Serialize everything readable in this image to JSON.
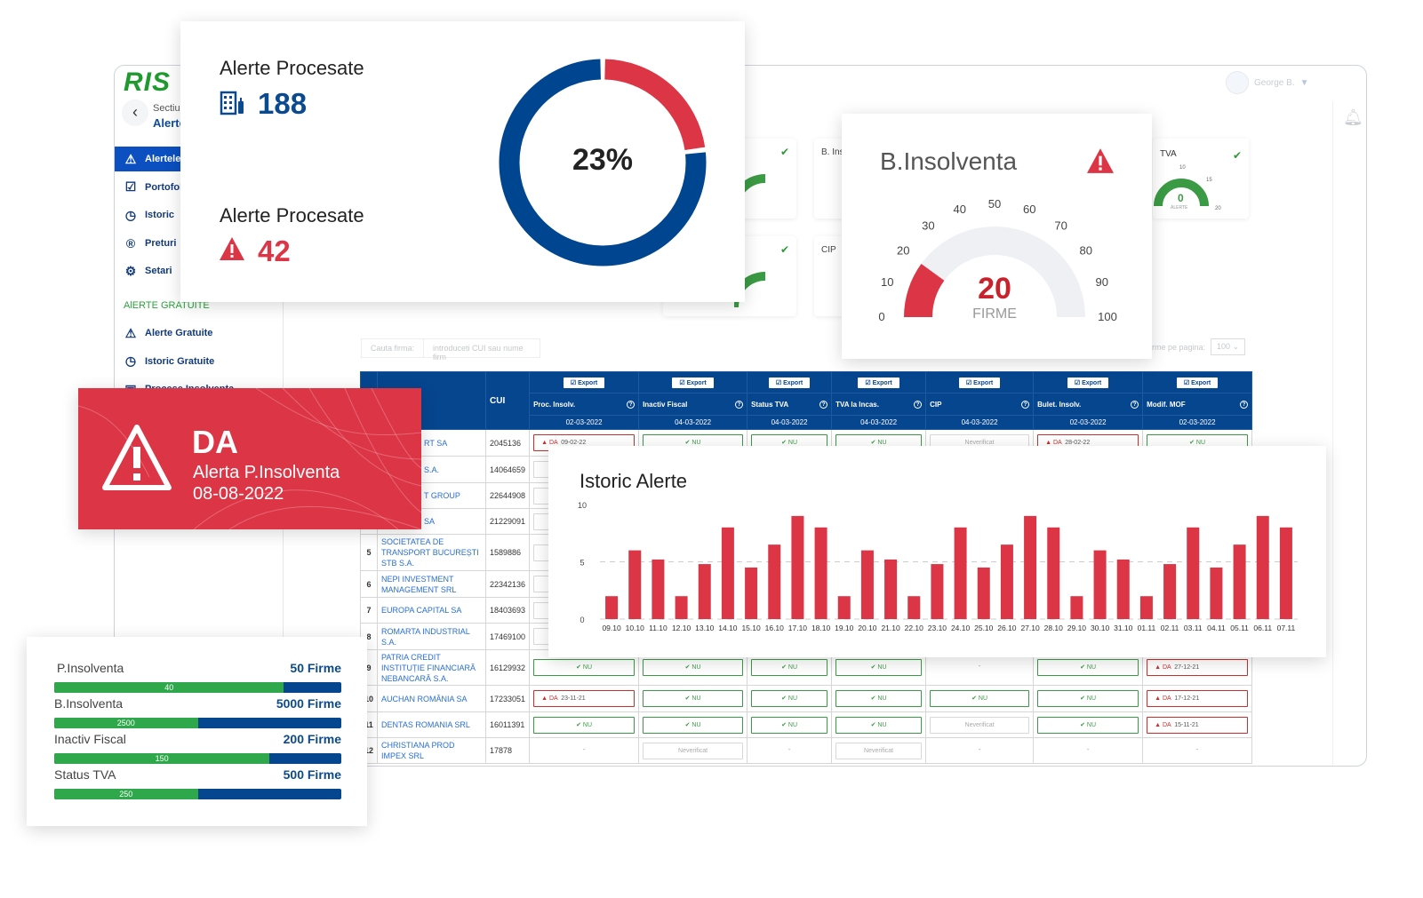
{
  "app": {
    "logo": "RIS",
    "back_label": "Sectiune",
    "back_sub": "Alerte",
    "user": "George B."
  },
  "sidebar": {
    "items": [
      {
        "label": "Alertele",
        "icon": "⚠"
      },
      {
        "label": "Portofoliu",
        "icon": "☑"
      },
      {
        "label": "Istoric",
        "icon": "◷"
      },
      {
        "label": "Preturi",
        "icon": "®"
      },
      {
        "label": "Setari",
        "icon": "⚙"
      }
    ],
    "section": "AlERTE GRATUITE",
    "free_items": [
      {
        "label": "Alerte Gratuite",
        "icon": "⚠"
      },
      {
        "label": "Istoric Gratuite",
        "icon": "◷"
      },
      {
        "label": "Procese Insolventa",
        "icon": "▣"
      }
    ]
  },
  "bg_cards": {
    "b_ins": "B. Ins",
    "cip": "CIP",
    "tva": "TVA",
    "tva_value": "0",
    "tva_unit": "ALERTE",
    "t10": "10",
    "t15": "15",
    "t20": "20"
  },
  "search": {
    "label": "Cauta firma:",
    "placeholder": "introduceti CUI sau nume firm",
    "per_page_label": "irme pe pagina:",
    "per_page": "100"
  },
  "table": {
    "cui_header": "CUI",
    "export_label": "Export",
    "columns": [
      {
        "name": "Proc. Insolv.",
        "date": "02-03-2022"
      },
      {
        "name": "Inactiv Fiscal",
        "date": "04-03-2022"
      },
      {
        "name": "Status TVA",
        "date": "04-03-2022"
      },
      {
        "name": "TVA la Incas.",
        "date": "04-03-2022"
      },
      {
        "name": "CIP",
        "date": "04-03-2022"
      },
      {
        "name": "Bulet. Insolv.",
        "date": "02-03-2022"
      },
      {
        "name": "Modif. MOF",
        "date": "02-03-2022"
      }
    ],
    "rows": [
      {
        "n": "",
        "name": "RT SA",
        "cui": "2045136",
        "cells": [
          {
            "s": "DA",
            "d": "09-02-22"
          },
          {
            "s": "NU"
          },
          {
            "s": "NU"
          },
          {
            "s": "NU"
          },
          {
            "s": "Neverificat"
          },
          {
            "s": "DA",
            "d": "28-02-22"
          },
          {
            "s": "NU"
          }
        ]
      },
      {
        "n": "",
        "name": "S.A.",
        "cui": "14064659",
        "cells": [
          {
            "s": ""
          },
          {
            "s": ""
          },
          {
            "s": ""
          },
          {
            "s": ""
          },
          {
            "s": ""
          },
          {
            "s": ""
          },
          {
            "s": ""
          }
        ]
      },
      {
        "n": "",
        "name": "T GROUP",
        "cui": "22644908",
        "cells": [
          {
            "s": ""
          },
          {
            "s": ""
          },
          {
            "s": ""
          },
          {
            "s": ""
          },
          {
            "s": ""
          },
          {
            "s": ""
          },
          {
            "s": ""
          }
        ]
      },
      {
        "n": "",
        "name": "SA",
        "cui": "21229091",
        "cells": [
          {
            "s": ""
          },
          {
            "s": ""
          },
          {
            "s": ""
          },
          {
            "s": ""
          },
          {
            "s": ""
          },
          {
            "s": ""
          },
          {
            "s": ""
          }
        ]
      },
      {
        "n": "5",
        "name": "SOCIETATEA DE TRANSPORT BUCUREȘTI STB S.A.",
        "cui": "1589886",
        "cells": [
          {
            "s": ""
          },
          {
            "s": ""
          },
          {
            "s": ""
          },
          {
            "s": ""
          },
          {
            "s": ""
          },
          {
            "s": ""
          },
          {
            "s": ""
          }
        ]
      },
      {
        "n": "6",
        "name": "NEPI INVESTMENT MANAGEMENT SRL",
        "cui": "22342136",
        "cells": [
          {
            "s": ""
          },
          {
            "s": ""
          },
          {
            "s": ""
          },
          {
            "s": ""
          },
          {
            "s": ""
          },
          {
            "s": ""
          },
          {
            "s": ""
          }
        ]
      },
      {
        "n": "7",
        "name": "EUROPA CAPITAL SA",
        "cui": "18403693",
        "cells": [
          {
            "s": ""
          },
          {
            "s": ""
          },
          {
            "s": ""
          },
          {
            "s": ""
          },
          {
            "s": ""
          },
          {
            "s": ""
          },
          {
            "s": ""
          }
        ]
      },
      {
        "n": "8",
        "name": "ROMARTA INDUSTRIAL S.A.",
        "cui": "17469100",
        "cells": [
          {
            "s": ""
          },
          {
            "s": ""
          },
          {
            "s": ""
          },
          {
            "s": ""
          },
          {
            "s": ""
          },
          {
            "s": ""
          },
          {
            "s": ""
          }
        ]
      },
      {
        "n": "9",
        "name": "PATRIA CREDIT INSTITUȚIE FINANCIARĂ NEBANCARĂ S.A.",
        "cui": "16129932",
        "cells": [
          {
            "s": "NU"
          },
          {
            "s": "NU"
          },
          {
            "s": "NU"
          },
          {
            "s": "NU"
          },
          {
            "s": "-"
          },
          {
            "s": "NU"
          },
          {
            "s": "DA",
            "d": "27-12-21"
          }
        ]
      },
      {
        "n": "10",
        "name": "AUCHAN ROMÂNIA SA",
        "cui": "17233051",
        "cells": [
          {
            "s": "DA",
            "d": "23-11-21"
          },
          {
            "s": "NU"
          },
          {
            "s": "NU"
          },
          {
            "s": "NU"
          },
          {
            "s": "NU"
          },
          {
            "s": "NU"
          },
          {
            "s": "DA",
            "d": "17-12-21"
          }
        ]
      },
      {
        "n": "11",
        "name": "DENTAS ROMANIA SRL",
        "cui": "16011391",
        "cells": [
          {
            "s": "NU"
          },
          {
            "s": "NU"
          },
          {
            "s": "NU"
          },
          {
            "s": "NU"
          },
          {
            "s": "Neverificat"
          },
          {
            "s": "NU"
          },
          {
            "s": "DA",
            "d": "15-11-21"
          }
        ]
      },
      {
        "n": "12",
        "name": "CHRISTIANA PROD IMPEX SRL",
        "cui": "17878",
        "cells": [
          {
            "s": "-"
          },
          {
            "s": "Neverificat"
          },
          {
            "s": "-"
          },
          {
            "s": "Neverificat"
          },
          {
            "s": "-"
          },
          {
            "s": "-"
          },
          {
            "s": "-"
          }
        ]
      }
    ]
  },
  "summary": {
    "title1": "Alerte Procesate",
    "value1": "188",
    "title2": "Alerte Procesate",
    "value2": "42",
    "percent": 23,
    "percent_label": "23%",
    "blue": "#00458f",
    "red": "#dc3545"
  },
  "binsolventa": {
    "title": "B.Insolventa",
    "value": 20,
    "value_label": "20",
    "unit": "FIRME",
    "max": 100,
    "ticks": [
      "0",
      "10",
      "20",
      "30",
      "40",
      "50",
      "60",
      "70",
      "80",
      "90",
      "100"
    ]
  },
  "alert_banner": {
    "status": "DA",
    "label": "Alerta P.Insolventa",
    "date": "08-08-2022"
  },
  "progress": {
    "items": [
      {
        "label": "P.Insolventa",
        "total_label": "50 Firme",
        "total": 50,
        "value": 40,
        "value_label": "40"
      },
      {
        "label": "B.Insolventa",
        "total_label": "5000 Firme",
        "total": 5000,
        "value": 2500,
        "value_label": "2500"
      },
      {
        "label": "Inactiv Fiscal",
        "total_label": "200 Firme",
        "total": 200,
        "value": 150,
        "value_label": "150"
      },
      {
        "label": "Status TVA",
        "total_label": "500 Firme",
        "total": 500,
        "value": 250,
        "value_label": "250"
      }
    ]
  },
  "chart_data": {
    "type": "bar",
    "title": "Istoric Alerte",
    "xlabel": "",
    "ylabel": "",
    "ylim": [
      0,
      10
    ],
    "yticks": [
      "0",
      "5",
      "10"
    ],
    "grid": "dashed at 5",
    "categories": [
      "09.10",
      "10.10",
      "11.10",
      "12.10",
      "13.10",
      "14.10",
      "15.10",
      "16.10",
      "17.10",
      "18.10",
      "19.10",
      "20.10",
      "21.10",
      "22.10",
      "23.10",
      "24.10",
      "25.10",
      "26.10",
      "27.10",
      "28.10",
      "29.10",
      "30.10",
      "31.10",
      "01.11",
      "02.11",
      "03.11",
      "04.11",
      "05.11",
      "06.11",
      "07.11"
    ],
    "values": [
      2,
      6,
      5.2,
      2,
      4.8,
      8,
      4.5,
      6.5,
      9,
      8,
      2,
      6,
      5.2,
      2,
      4.8,
      8,
      4.5,
      6.5,
      9,
      8,
      2,
      6,
      5.2,
      2,
      4.8,
      8,
      4.5,
      6.5,
      9,
      8
    ],
    "color": "#dc3545"
  }
}
